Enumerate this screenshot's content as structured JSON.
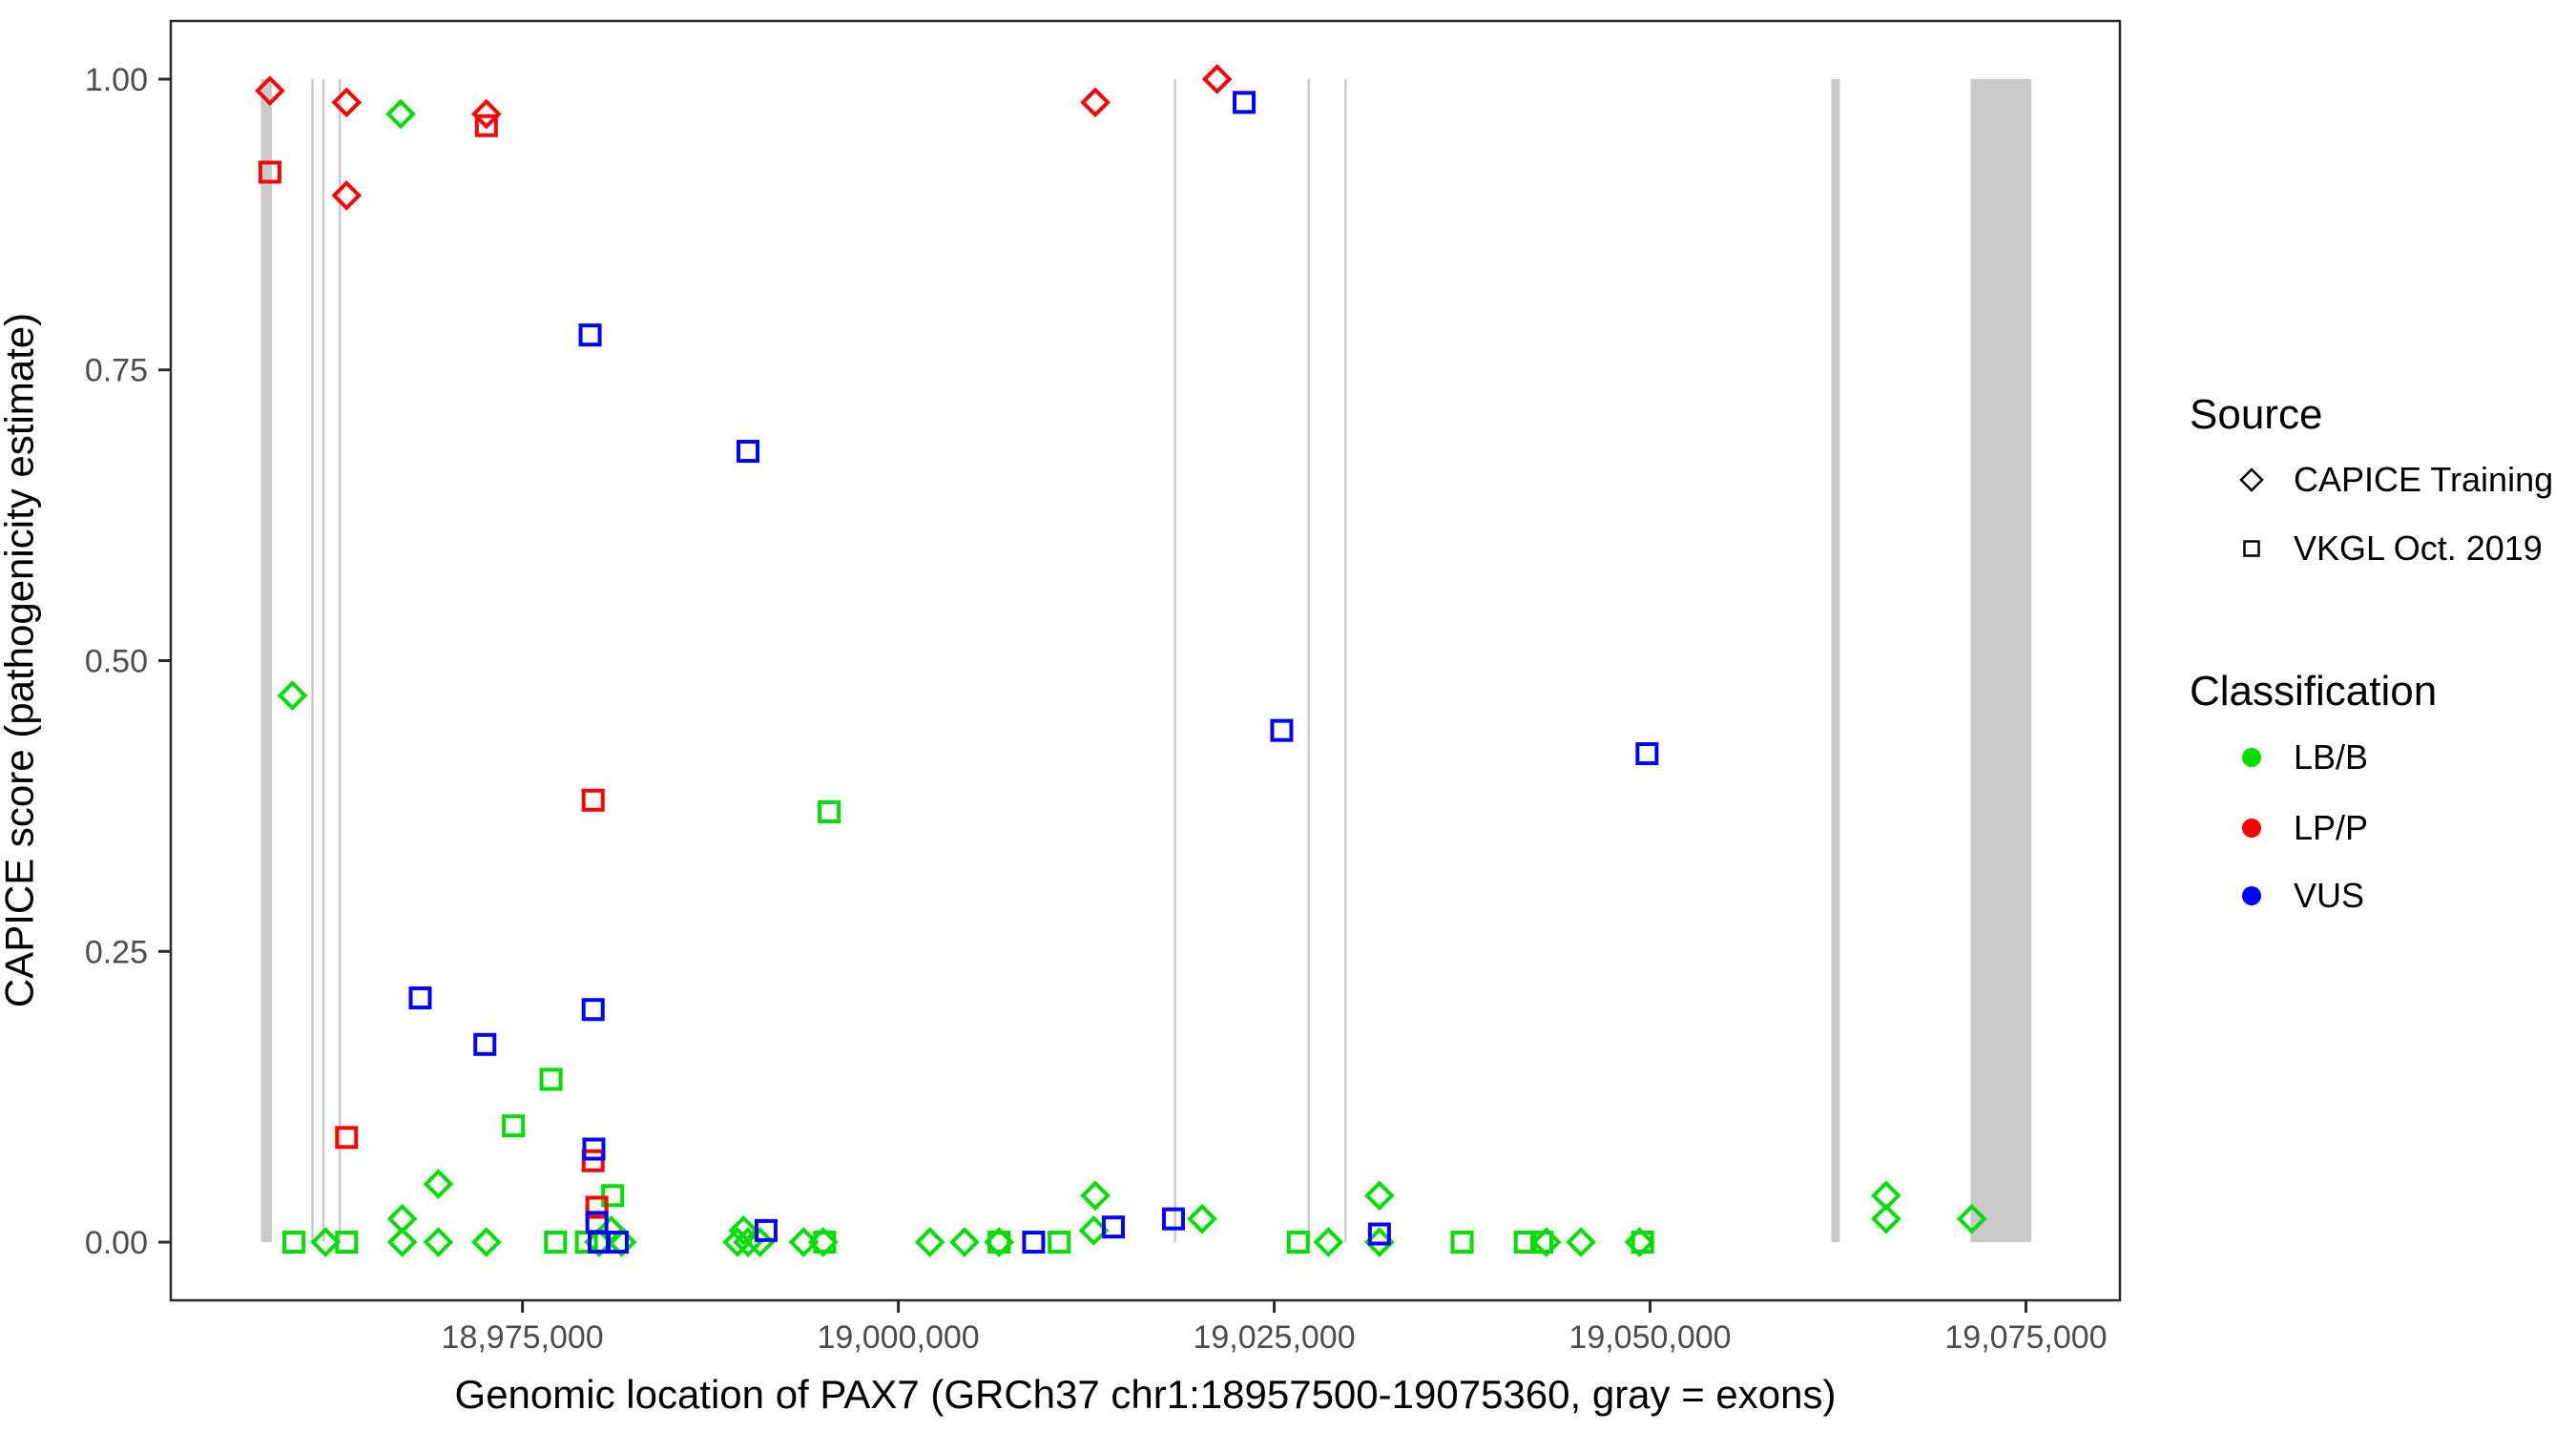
{
  "chart_data": {
    "type": "scatter",
    "title": "",
    "xlabel": "Genomic location of PAX7 (GRCh37 chr1:18957500-19075360, gray = exons)",
    "ylabel": "CAPICE score (pathogenicity estimate)",
    "xlim": [
      18951607,
      19081253
    ],
    "ylim": [
      -0.05,
      1.05
    ],
    "grid": false,
    "x_ticks": [
      {
        "v": 18975000,
        "label": "18,975,000"
      },
      {
        "v": 19000000,
        "label": "19,000,000"
      },
      {
        "v": 19025000,
        "label": "19,025,000"
      },
      {
        "v": 19050000,
        "label": "19,050,000"
      },
      {
        "v": 19075000,
        "label": "19,075,000"
      }
    ],
    "y_ticks": [
      {
        "v": 0.0,
        "label": "0.00"
      },
      {
        "v": 0.25,
        "label": "0.25"
      },
      {
        "v": 0.5,
        "label": "0.50"
      },
      {
        "v": 0.75,
        "label": "0.75"
      },
      {
        "v": 1.0,
        "label": "1.00"
      }
    ],
    "exon_color": "#c9c9c9",
    "exons": [
      [
        18957600,
        18958330
      ],
      [
        18960950,
        18961110
      ],
      [
        18961680,
        18961840
      ],
      [
        18962770,
        18962930
      ],
      [
        19018330,
        19018460
      ],
      [
        19027220,
        19027350
      ],
      [
        19029670,
        19029820
      ],
      [
        19062050,
        19062620
      ],
      [
        19071320,
        19075360
      ]
    ],
    "class_colors": {
      "LB/B": "#00dd00",
      "LP/P": "#ff0000",
      "VUS": "#0000ff"
    },
    "series": [
      {
        "name": "CAPICE Training",
        "marker": "diamond",
        "groups": {
          "LB/B": [
            [
              18959700,
              0.47
            ],
            [
              18966900,
              0.97
            ],
            [
              18961900,
              0.0
            ],
            [
              18967000,
              0.02
            ],
            [
              18967000,
              0.0
            ],
            [
              18969400,
              0.05
            ],
            [
              18969400,
              0.0
            ],
            [
              18972600,
              0.0
            ],
            [
              18980100,
              0.0
            ],
            [
              18980900,
              0.01
            ],
            [
              18981600,
              0.0
            ],
            [
              18989300,
              0.0
            ],
            [
              18989700,
              0.01
            ],
            [
              18990000,
              0.0
            ],
            [
              18990800,
              0.0
            ],
            [
              18993700,
              0.0
            ],
            [
              18995000,
              0.0
            ],
            [
              19002100,
              0.0
            ],
            [
              19004400,
              0.0
            ],
            [
              19006700,
              0.0
            ],
            [
              19013100,
              0.04
            ],
            [
              19013000,
              0.01
            ],
            [
              19020200,
              0.02
            ],
            [
              19028600,
              0.0
            ],
            [
              19032000,
              0.04
            ],
            [
              19032000,
              0.0
            ],
            [
              19043100,
              0.0
            ],
            [
              19045400,
              0.0
            ],
            [
              19049300,
              0.0
            ],
            [
              19065700,
              0.04
            ],
            [
              19065700,
              0.02
            ],
            [
              19071400,
              0.02
            ]
          ],
          "LP/P": [
            [
              18958200,
              0.99
            ],
            [
              18963300,
              0.98
            ],
            [
              18963300,
              0.9
            ],
            [
              18972600,
              0.97
            ],
            [
              19013100,
              0.98
            ],
            [
              19021200,
              1.0
            ]
          ],
          "VUS": []
        }
      },
      {
        "name": "VKGL Oct. 2019",
        "marker": "square",
        "groups": {
          "LB/B": [
            [
              18959800,
              0.0
            ],
            [
              18963300,
              0.0
            ],
            [
              18974400,
              0.1
            ],
            [
              18976900,
              0.14
            ],
            [
              18977200,
              0.0
            ],
            [
              18979250,
              0.0
            ],
            [
              18981000,
              0.04
            ],
            [
              18995400,
              0.37
            ],
            [
              18995100,
              0.0
            ],
            [
              19006700,
              0.0
            ],
            [
              19010700,
              0.0
            ],
            [
              19026600,
              0.0
            ],
            [
              19037500,
              0.0
            ],
            [
              19041700,
              0.0
            ],
            [
              19042800,
              0.0
            ],
            [
              19049500,
              0.0
            ]
          ],
          "LP/P": [
            [
              18958200,
              0.92
            ],
            [
              18972600,
              0.96
            ],
            [
              18963300,
              0.09
            ],
            [
              18979700,
              0.38
            ],
            [
              18979700,
              0.07
            ],
            [
              18979950,
              0.03
            ]
          ],
          "VUS": [
            [
              19023000,
              0.98
            ],
            [
              18979500,
              0.78
            ],
            [
              18990000,
              0.68
            ],
            [
              19025500,
              0.44
            ],
            [
              19049800,
              0.42
            ],
            [
              18968200,
              0.21
            ],
            [
              18979700,
              0.2
            ],
            [
              18972500,
              0.17
            ],
            [
              18979750,
              0.08
            ],
            [
              18979950,
              0.017
            ],
            [
              18980100,
              0.0
            ],
            [
              18981300,
              0.0
            ],
            [
              18991200,
              0.01
            ],
            [
              19009000,
              0.0
            ],
            [
              19014300,
              0.013
            ],
            [
              19018300,
              0.02
            ],
            [
              19032000,
              0.007
            ]
          ]
        }
      }
    ]
  },
  "legend": {
    "source_title": "Source",
    "source_items": [
      {
        "label": "CAPICE Training",
        "marker": "diamond"
      },
      {
        "label": "VKGL Oct. 2019",
        "marker": "square"
      }
    ],
    "class_title": "Classification",
    "class_items": [
      {
        "label": "LB/B",
        "color": "#00dd00"
      },
      {
        "label": "LP/P",
        "color": "#ff0000"
      },
      {
        "label": "VUS",
        "color": "#0000ff"
      }
    ]
  },
  "style": {
    "border_color": "#2b2b2b",
    "tick_color": "#2b2b2b",
    "tick_label_color": "#4d4d4d"
  }
}
